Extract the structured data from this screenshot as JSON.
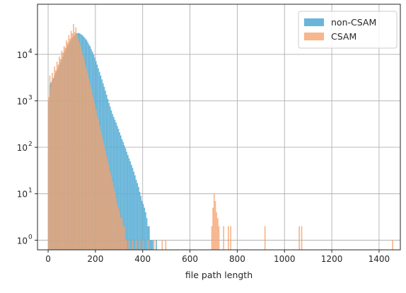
{
  "chart_data": {
    "type": "bar",
    "subtype": "overlaid-histogram",
    "xlabel": "file path length",
    "ylabel": "",
    "yscale": "log",
    "xlim": [
      -45,
      1490
    ],
    "ylim": [
      0.62,
      120000
    ],
    "xticks": [
      0,
      200,
      400,
      600,
      800,
      1000,
      1200,
      1400
    ],
    "xtick_labels": [
      "0",
      "200",
      "400",
      "600",
      "800",
      "1000",
      "1200",
      "1400"
    ],
    "yticks": [
      1,
      10,
      100,
      1000,
      10000
    ],
    "ytick_labels": [
      {
        "base": "10",
        "exp": "0"
      },
      {
        "base": "10",
        "exp": "1"
      },
      {
        "base": "10",
        "exp": "2"
      },
      {
        "base": "10",
        "exp": "3"
      },
      {
        "base": "10",
        "exp": "4"
      }
    ],
    "grid": true,
    "legend_position": "top-right",
    "bin_width": 5,
    "series": [
      {
        "name": "non-CSAM",
        "color": "#5aaed6",
        "bins": [
          [
            0,
            1000
          ],
          [
            5,
            2200
          ],
          [
            10,
            2500
          ],
          [
            15,
            2800
          ],
          [
            20,
            3100
          ],
          [
            25,
            3600
          ],
          [
            30,
            4000
          ],
          [
            35,
            4600
          ],
          [
            40,
            5200
          ],
          [
            45,
            6000
          ],
          [
            50,
            6800
          ],
          [
            55,
            7800
          ],
          [
            60,
            9000
          ],
          [
            65,
            10500
          ],
          [
            70,
            12000
          ],
          [
            75,
            13500
          ],
          [
            80,
            15500
          ],
          [
            85,
            17000
          ],
          [
            90,
            19000
          ],
          [
            95,
            21000
          ],
          [
            100,
            23000
          ],
          [
            105,
            24500
          ],
          [
            110,
            26000
          ],
          [
            115,
            27500
          ],
          [
            120,
            28500
          ],
          [
            125,
            29000
          ],
          [
            130,
            28500
          ],
          [
            135,
            27500
          ],
          [
            140,
            26500
          ],
          [
            145,
            25000
          ],
          [
            150,
            23500
          ],
          [
            155,
            22000
          ],
          [
            160,
            20500
          ],
          [
            165,
            18500
          ],
          [
            170,
            16500
          ],
          [
            175,
            15000
          ],
          [
            180,
            13000
          ],
          [
            185,
            11500
          ],
          [
            190,
            10000
          ],
          [
            195,
            8500
          ],
          [
            200,
            7200
          ],
          [
            205,
            6000
          ],
          [
            210,
            5000
          ],
          [
            215,
            4200
          ],
          [
            220,
            3500
          ],
          [
            225,
            2900
          ],
          [
            230,
            2400
          ],
          [
            235,
            2000
          ],
          [
            240,
            1650
          ],
          [
            245,
            1350
          ],
          [
            250,
            1100
          ],
          [
            255,
            900
          ],
          [
            260,
            750
          ],
          [
            265,
            620
          ],
          [
            270,
            520
          ],
          [
            275,
            450
          ],
          [
            280,
            390
          ],
          [
            285,
            340
          ],
          [
            290,
            290
          ],
          [
            295,
            250
          ],
          [
            300,
            210
          ],
          [
            305,
            180
          ],
          [
            310,
            150
          ],
          [
            315,
            130
          ],
          [
            320,
            110
          ],
          [
            325,
            95
          ],
          [
            330,
            80
          ],
          [
            335,
            68
          ],
          [
            340,
            58
          ],
          [
            345,
            50
          ],
          [
            350,
            42
          ],
          [
            355,
            36
          ],
          [
            360,
            30
          ],
          [
            365,
            25
          ],
          [
            370,
            20
          ],
          [
            375,
            17
          ],
          [
            380,
            14
          ],
          [
            385,
            11
          ],
          [
            390,
            9
          ],
          [
            395,
            7
          ],
          [
            400,
            6
          ],
          [
            405,
            5
          ],
          [
            410,
            4
          ],
          [
            415,
            3
          ],
          [
            420,
            2
          ],
          [
            425,
            2
          ],
          [
            430,
            1
          ],
          [
            435,
            1
          ],
          [
            440,
            1
          ],
          [
            455,
            1
          ]
        ]
      },
      {
        "name": "CSAM",
        "color": "#f5a26b",
        "bins": [
          [
            0,
            1200
          ],
          [
            5,
            3500
          ],
          [
            10,
            2000
          ],
          [
            15,
            4000
          ],
          [
            20,
            3000
          ],
          [
            25,
            5500
          ],
          [
            30,
            4500
          ],
          [
            35,
            7000
          ],
          [
            40,
            6000
          ],
          [
            45,
            9000
          ],
          [
            50,
            8000
          ],
          [
            55,
            12000
          ],
          [
            60,
            11000
          ],
          [
            65,
            15000
          ],
          [
            70,
            14000
          ],
          [
            75,
            20000
          ],
          [
            80,
            18000
          ],
          [
            85,
            26000
          ],
          [
            90,
            22000
          ],
          [
            95,
            32000
          ],
          [
            100,
            28000
          ],
          [
            105,
            45000
          ],
          [
            110,
            30000
          ],
          [
            115,
            38000
          ],
          [
            120,
            25000
          ],
          [
            125,
            22000
          ],
          [
            130,
            18000
          ],
          [
            135,
            15000
          ],
          [
            140,
            12000
          ],
          [
            145,
            9500
          ],
          [
            150,
            7500
          ],
          [
            155,
            6000
          ],
          [
            160,
            4800
          ],
          [
            165,
            3800
          ],
          [
            170,
            3000
          ],
          [
            175,
            2300
          ],
          [
            180,
            1800
          ],
          [
            185,
            1400
          ],
          [
            190,
            1100
          ],
          [
            195,
            850
          ],
          [
            200,
            650
          ],
          [
            205,
            500
          ],
          [
            210,
            400
          ],
          [
            215,
            300
          ],
          [
            220,
            230
          ],
          [
            225,
            180
          ],
          [
            230,
            140
          ],
          [
            235,
            110
          ],
          [
            240,
            85
          ],
          [
            245,
            65
          ],
          [
            250,
            50
          ],
          [
            255,
            40
          ],
          [
            260,
            30
          ],
          [
            265,
            24
          ],
          [
            270,
            18
          ],
          [
            275,
            14
          ],
          [
            280,
            11
          ],
          [
            285,
            8
          ],
          [
            290,
            6
          ],
          [
            295,
            5
          ],
          [
            300,
            4
          ],
          [
            305,
            3
          ],
          [
            310,
            3
          ],
          [
            315,
            2
          ],
          [
            320,
            2
          ],
          [
            325,
            1
          ],
          [
            330,
            1
          ],
          [
            340,
            1
          ],
          [
            355,
            1
          ],
          [
            370,
            1
          ],
          [
            385,
            1
          ],
          [
            400,
            1
          ],
          [
            420,
            1
          ],
          [
            445,
            1
          ],
          [
            480,
            1
          ],
          [
            495,
            1
          ],
          [
            690,
            2
          ],
          [
            695,
            5
          ],
          [
            700,
            10
          ],
          [
            705,
            7
          ],
          [
            710,
            4
          ],
          [
            715,
            3
          ],
          [
            720,
            2
          ],
          [
            740,
            2
          ],
          [
            760,
            2
          ],
          [
            770,
            2
          ],
          [
            915,
            2
          ],
          [
            1060,
            2
          ],
          [
            1070,
            2
          ],
          [
            1455,
            1
          ]
        ]
      }
    ]
  }
}
